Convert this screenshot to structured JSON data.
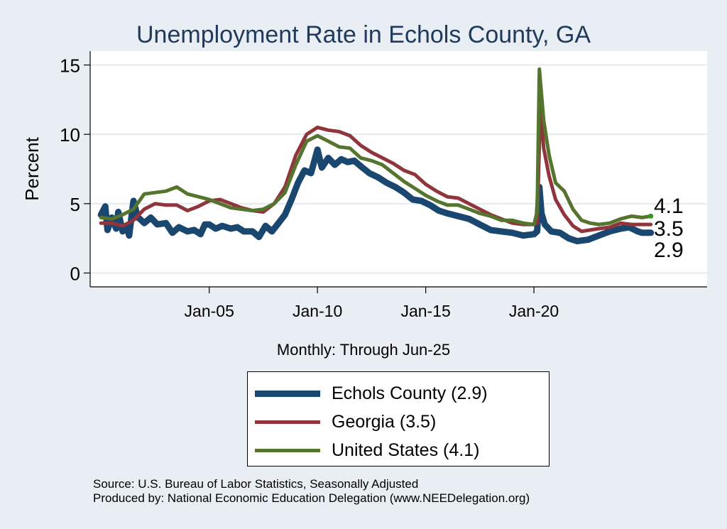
{
  "chart_data": {
    "type": "line",
    "title": "Unemployment Rate in Echols  County, GA",
    "ylabel": "Percent",
    "xlabel": "Monthly: Through Jun-25",
    "ylim": [
      -1,
      16
    ],
    "yticks": [
      0,
      5,
      10,
      15
    ],
    "xticks": [
      {
        "label": "Jan-05",
        "x": 2005
      },
      {
        "label": "Jan-10",
        "x": 2010
      },
      {
        "label": "Jan-15",
        "x": 2015
      },
      {
        "label": "Jan-20",
        "x": 2020
      }
    ],
    "xlim": [
      1999.5,
      2028.0
    ],
    "grid": true,
    "legend_placement": "bottom",
    "end_labels": [
      "4.1",
      "3.5",
      "2.9"
    ],
    "series": [
      {
        "name": "Echols  County (2.9)",
        "color": "#1a476f",
        "width": 9,
        "points": [
          [
            2000.0,
            4.2
          ],
          [
            2000.2,
            4.8
          ],
          [
            2000.3,
            3.1
          ],
          [
            2000.5,
            4.0
          ],
          [
            2000.7,
            3.2
          ],
          [
            2000.8,
            4.4
          ],
          [
            2001.0,
            3.0
          ],
          [
            2001.2,
            3.3
          ],
          [
            2001.3,
            2.7
          ],
          [
            2001.5,
            5.2
          ],
          [
            2001.7,
            4.0
          ],
          [
            2001.8,
            3.9
          ],
          [
            2002.0,
            3.6
          ],
          [
            2002.3,
            4.0
          ],
          [
            2002.6,
            3.5
          ],
          [
            2003.0,
            3.6
          ],
          [
            2003.3,
            2.9
          ],
          [
            2003.6,
            3.3
          ],
          [
            2004.0,
            3.0
          ],
          [
            2004.3,
            3.1
          ],
          [
            2004.6,
            2.8
          ],
          [
            2004.8,
            3.5
          ],
          [
            2005.0,
            3.5
          ],
          [
            2005.3,
            3.2
          ],
          [
            2005.6,
            3.4
          ],
          [
            2006.0,
            3.2
          ],
          [
            2006.3,
            3.3
          ],
          [
            2006.6,
            3.0
          ],
          [
            2007.0,
            3.0
          ],
          [
            2007.3,
            2.6
          ],
          [
            2007.6,
            3.4
          ],
          [
            2007.9,
            3.0
          ],
          [
            2008.2,
            3.6
          ],
          [
            2008.5,
            4.2
          ],
          [
            2008.8,
            5.3
          ],
          [
            2009.1,
            6.5
          ],
          [
            2009.4,
            7.4
          ],
          [
            2009.7,
            7.2
          ],
          [
            2010.0,
            8.9
          ],
          [
            2010.2,
            7.6
          ],
          [
            2010.5,
            8.3
          ],
          [
            2010.8,
            7.8
          ],
          [
            2011.1,
            8.2
          ],
          [
            2011.4,
            8.0
          ],
          [
            2011.7,
            8.1
          ],
          [
            2012.0,
            7.7
          ],
          [
            2012.4,
            7.2
          ],
          [
            2012.8,
            6.9
          ],
          [
            2013.2,
            6.5
          ],
          [
            2013.6,
            6.2
          ],
          [
            2014.0,
            5.8
          ],
          [
            2014.4,
            5.3
          ],
          [
            2014.8,
            5.2
          ],
          [
            2015.2,
            4.9
          ],
          [
            2015.6,
            4.5
          ],
          [
            2016.0,
            4.3
          ],
          [
            2016.5,
            4.1
          ],
          [
            2017.0,
            3.9
          ],
          [
            2017.5,
            3.5
          ],
          [
            2018.0,
            3.1
          ],
          [
            2018.5,
            3.0
          ],
          [
            2019.0,
            2.9
          ],
          [
            2019.5,
            2.7
          ],
          [
            2020.0,
            2.8
          ],
          [
            2020.15,
            3.0
          ],
          [
            2020.25,
            6.2
          ],
          [
            2020.35,
            4.3
          ],
          [
            2020.5,
            3.5
          ],
          [
            2020.8,
            3.0
          ],
          [
            2021.2,
            2.9
          ],
          [
            2021.6,
            2.5
          ],
          [
            2022.0,
            2.3
          ],
          [
            2022.5,
            2.4
          ],
          [
            2023.0,
            2.7
          ],
          [
            2023.5,
            3.0
          ],
          [
            2024.0,
            3.2
          ],
          [
            2024.4,
            3.3
          ],
          [
            2024.8,
            3.0
          ],
          [
            2025.0,
            2.9
          ],
          [
            2025.4,
            2.9
          ]
        ]
      },
      {
        "name": "Georgia (3.5)",
        "color": "#90353b",
        "width": 5,
        "points": [
          [
            2000.0,
            3.6
          ],
          [
            2000.5,
            3.6
          ],
          [
            2001.0,
            3.4
          ],
          [
            2001.5,
            3.8
          ],
          [
            2002.0,
            4.6
          ],
          [
            2002.5,
            5.0
          ],
          [
            2003.0,
            4.9
          ],
          [
            2003.5,
            4.9
          ],
          [
            2004.0,
            4.5
          ],
          [
            2004.5,
            4.8
          ],
          [
            2005.0,
            5.2
          ],
          [
            2005.5,
            5.3
          ],
          [
            2006.0,
            5.0
          ],
          [
            2006.5,
            4.7
          ],
          [
            2007.0,
            4.5
          ],
          [
            2007.5,
            4.4
          ],
          [
            2008.0,
            5.0
          ],
          [
            2008.5,
            6.2
          ],
          [
            2009.0,
            8.5
          ],
          [
            2009.5,
            10.0
          ],
          [
            2010.0,
            10.5
          ],
          [
            2010.5,
            10.3
          ],
          [
            2011.0,
            10.2
          ],
          [
            2011.5,
            9.9
          ],
          [
            2012.0,
            9.2
          ],
          [
            2012.5,
            8.7
          ],
          [
            2013.0,
            8.3
          ],
          [
            2013.5,
            7.9
          ],
          [
            2014.0,
            7.4
          ],
          [
            2014.5,
            7.1
          ],
          [
            2015.0,
            6.4
          ],
          [
            2015.5,
            5.9
          ],
          [
            2016.0,
            5.5
          ],
          [
            2016.5,
            5.4
          ],
          [
            2017.0,
            5.0
          ],
          [
            2017.5,
            4.6
          ],
          [
            2018.0,
            4.2
          ],
          [
            2018.5,
            3.9
          ],
          [
            2019.0,
            3.6
          ],
          [
            2019.5,
            3.5
          ],
          [
            2020.0,
            3.5
          ],
          [
            2020.15,
            3.6
          ],
          [
            2020.3,
            12.0
          ],
          [
            2020.45,
            9.0
          ],
          [
            2020.7,
            7.0
          ],
          [
            2021.0,
            5.3
          ],
          [
            2021.4,
            4.2
          ],
          [
            2021.8,
            3.4
          ],
          [
            2022.2,
            3.0
          ],
          [
            2022.6,
            3.1
          ],
          [
            2023.0,
            3.2
          ],
          [
            2023.5,
            3.3
          ],
          [
            2024.0,
            3.6
          ],
          [
            2024.5,
            3.5
          ],
          [
            2025.0,
            3.5
          ],
          [
            2025.4,
            3.5
          ]
        ]
      },
      {
        "name": "United States (4.1)",
        "color": "#55752f",
        "width": 5,
        "points": [
          [
            2000.0,
            4.0
          ],
          [
            2000.5,
            3.9
          ],
          [
            2001.0,
            4.2
          ],
          [
            2001.5,
            4.6
          ],
          [
            2002.0,
            5.7
          ],
          [
            2002.5,
            5.8
          ],
          [
            2003.0,
            5.9
          ],
          [
            2003.5,
            6.2
          ],
          [
            2004.0,
            5.7
          ],
          [
            2004.5,
            5.5
          ],
          [
            2005.0,
            5.3
          ],
          [
            2005.5,
            5.0
          ],
          [
            2006.0,
            4.7
          ],
          [
            2006.5,
            4.6
          ],
          [
            2007.0,
            4.5
          ],
          [
            2007.5,
            4.6
          ],
          [
            2008.0,
            5.0
          ],
          [
            2008.5,
            5.8
          ],
          [
            2009.0,
            7.8
          ],
          [
            2009.5,
            9.5
          ],
          [
            2010.0,
            9.9
          ],
          [
            2010.5,
            9.5
          ],
          [
            2011.0,
            9.1
          ],
          [
            2011.5,
            9.0
          ],
          [
            2012.0,
            8.3
          ],
          [
            2012.5,
            8.1
          ],
          [
            2013.0,
            7.8
          ],
          [
            2013.5,
            7.2
          ],
          [
            2014.0,
            6.6
          ],
          [
            2014.5,
            6.1
          ],
          [
            2015.0,
            5.6
          ],
          [
            2015.5,
            5.2
          ],
          [
            2016.0,
            4.9
          ],
          [
            2016.5,
            4.9
          ],
          [
            2017.0,
            4.6
          ],
          [
            2017.5,
            4.3
          ],
          [
            2018.0,
            4.1
          ],
          [
            2018.5,
            3.8
          ],
          [
            2019.0,
            3.8
          ],
          [
            2019.5,
            3.6
          ],
          [
            2020.0,
            3.5
          ],
          [
            2020.15,
            4.4
          ],
          [
            2020.25,
            14.7
          ],
          [
            2020.45,
            11.0
          ],
          [
            2020.7,
            8.5
          ],
          [
            2021.0,
            6.5
          ],
          [
            2021.4,
            5.9
          ],
          [
            2021.8,
            4.6
          ],
          [
            2022.2,
            3.8
          ],
          [
            2022.6,
            3.6
          ],
          [
            2023.0,
            3.5
          ],
          [
            2023.5,
            3.6
          ],
          [
            2024.0,
            3.9
          ],
          [
            2024.5,
            4.1
          ],
          [
            2025.0,
            4.0
          ],
          [
            2025.4,
            4.1
          ]
        ]
      }
    ]
  },
  "legend": {
    "items": [
      {
        "label": "Echols  County (2.9)",
        "color": "#1a476f"
      },
      {
        "label": "Georgia (3.5)",
        "color": "#90353b"
      },
      {
        "label": "United States (4.1)",
        "color": "#55752f"
      }
    ]
  },
  "source": {
    "line1": "Source: U.S. Bureau of Labor Statistics, Seasonally Adjusted",
    "line2": "Produced by: National Economic Education Delegation (www.NEEDelegation.org)"
  }
}
